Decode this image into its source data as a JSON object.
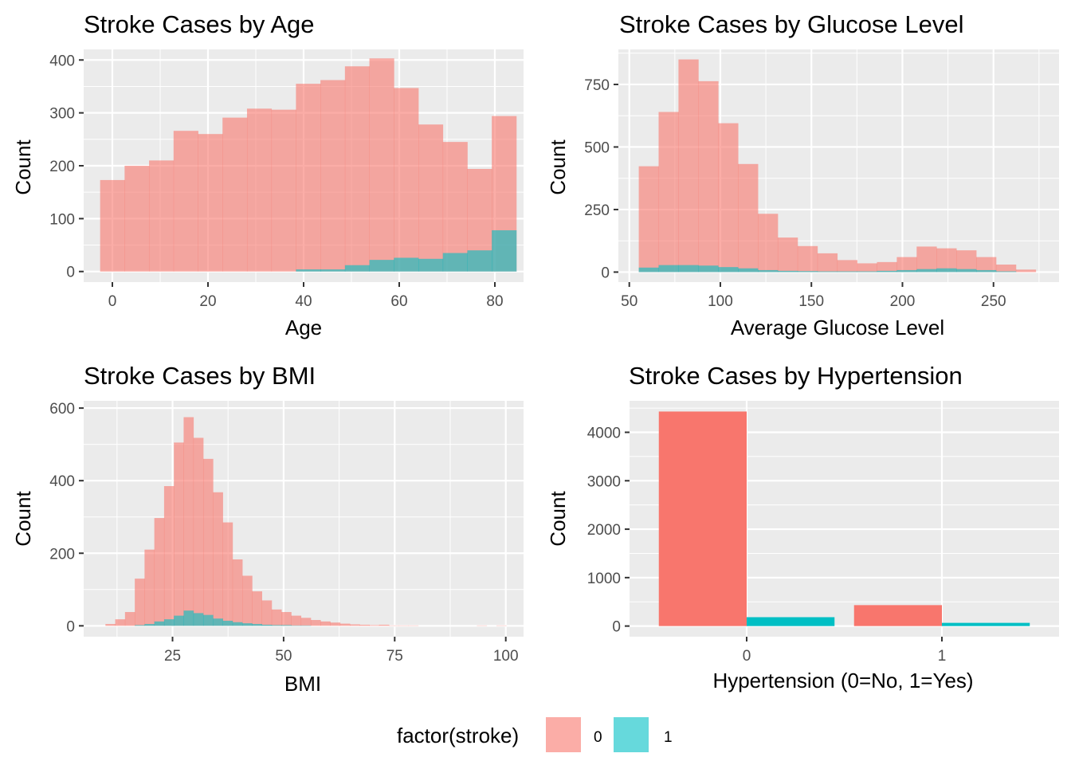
{
  "chart_data": [
    {
      "type": "bar",
      "title": "Stroke Cases by Age",
      "xlabel": "Age",
      "ylabel": "Count",
      "xlim": [
        -6,
        86
      ],
      "ylim": [
        -20,
        420
      ],
      "x_ticks": [
        0,
        20,
        40,
        60,
        80
      ],
      "y_ticks": [
        0,
        100,
        200,
        300,
        400
      ],
      "bin_width": 5.12,
      "bin_starts": [
        -2.56,
        2.56,
        7.68,
        12.8,
        17.92,
        23.04,
        28.16,
        33.28,
        38.4,
        43.52,
        48.64,
        53.76,
        58.88,
        64.0,
        69.12,
        74.24,
        79.36
      ],
      "series": [
        {
          "name": "0",
          "values": [
            173,
            200,
            210,
            266,
            260,
            291,
            308,
            306,
            355,
            362,
            388,
            403,
            347,
            278,
            245,
            194,
            294
          ]
        },
        {
          "name": "1",
          "values": [
            0,
            0,
            0,
            0,
            0,
            0,
            0,
            0,
            4,
            4,
            12,
            22,
            26,
            24,
            35,
            40,
            78
          ]
        }
      ]
    },
    {
      "type": "bar",
      "title": "Stroke Cases by Glucose Level",
      "xlabel": "Average Glucose Level",
      "ylabel": "Count",
      "xlim": [
        44,
        286
      ],
      "ylim": [
        -40,
        890
      ],
      "x_ticks": [
        50,
        100,
        150,
        200,
        250
      ],
      "y_ticks": [
        0,
        250,
        500,
        750
      ],
      "bin_width": 10.9,
      "bin_starts": [
        55.2,
        66.1,
        77.0,
        87.9,
        98.8,
        109.7,
        120.6,
        131.5,
        142.4,
        153.3,
        164.2,
        175.1,
        186.0,
        196.9,
        207.8,
        218.7,
        229.6,
        240.5,
        251.4,
        262.3
      ],
      "series": [
        {
          "name": "0",
          "values": [
            423,
            640,
            850,
            763,
            595,
            432,
            233,
            138,
            104,
            75,
            48,
            35,
            40,
            60,
            102,
            95,
            87,
            60,
            30,
            10
          ]
        },
        {
          "name": "1",
          "values": [
            18,
            28,
            28,
            26,
            20,
            15,
            8,
            5,
            4,
            3,
            3,
            3,
            5,
            8,
            12,
            15,
            12,
            8,
            3,
            0
          ]
        }
      ]
    },
    {
      "type": "bar",
      "title": "Stroke Cases by BMI",
      "xlabel": "BMI",
      "ylabel": "Count",
      "xlim": [
        5,
        104
      ],
      "ylim": [
        -30,
        620
      ],
      "x_ticks": [
        25,
        50,
        75,
        100
      ],
      "y_ticks": [
        0,
        200,
        400,
        600
      ],
      "bin_width": 2.2,
      "bin_starts": [
        9.9,
        12.1,
        14.3,
        16.5,
        18.7,
        20.9,
        23.1,
        25.3,
        27.5,
        29.7,
        31.9,
        34.1,
        36.3,
        38.5,
        40.7,
        42.9,
        45.1,
        47.3,
        49.5,
        51.7,
        53.9,
        56.1,
        58.3,
        60.5,
        62.7,
        64.9,
        67.1,
        69.3,
        71.5,
        73.7,
        75.9,
        78.1,
        80.3,
        82.5,
        84.7,
        86.9,
        89.1,
        91.3,
        93.5,
        95.7,
        97.9
      ],
      "series": [
        {
          "name": "0",
          "values": [
            5,
            18,
            38,
            130,
            210,
            297,
            385,
            505,
            575,
            518,
            460,
            368,
            285,
            183,
            138,
            95,
            70,
            45,
            38,
            28,
            22,
            16,
            12,
            9,
            6,
            4,
            3,
            2,
            3,
            1,
            1,
            1,
            0,
            0,
            0,
            0,
            0,
            0,
            1,
            0,
            1
          ]
        },
        {
          "name": "1",
          "values": [
            0,
            0,
            0,
            2,
            5,
            12,
            18,
            28,
            42,
            35,
            30,
            20,
            14,
            10,
            7,
            5,
            3,
            2,
            2,
            1,
            1,
            0,
            0,
            0,
            0,
            0,
            0,
            0,
            0,
            0,
            0,
            0,
            0,
            0,
            0,
            0,
            0,
            0,
            0,
            0,
            0
          ]
        }
      ]
    },
    {
      "type": "bar",
      "title": "Stroke Cases by Hypertension",
      "xlabel": "Hypertension (0=No, 1=Yes)",
      "ylabel": "Count",
      "categories": [
        "0",
        "1"
      ],
      "ylim": [
        -220,
        4650
      ],
      "y_ticks": [
        0,
        1000,
        2000,
        3000,
        4000
      ],
      "series": [
        {
          "name": "0",
          "values": [
            4429,
            432
          ]
        },
        {
          "name": "1",
          "values": [
            183,
            66
          ]
        }
      ]
    }
  ],
  "legend": {
    "title": "factor(stroke)",
    "items": [
      {
        "label": "0",
        "color": "#F8766D"
      },
      {
        "label": "1",
        "color": "#00BFC4"
      }
    ]
  },
  "colors": {
    "panel_bg": "#EBEBEB",
    "grid_major": "#FFFFFF",
    "hist_0": "#F8766D",
    "hist_1": "#00BFC4"
  }
}
